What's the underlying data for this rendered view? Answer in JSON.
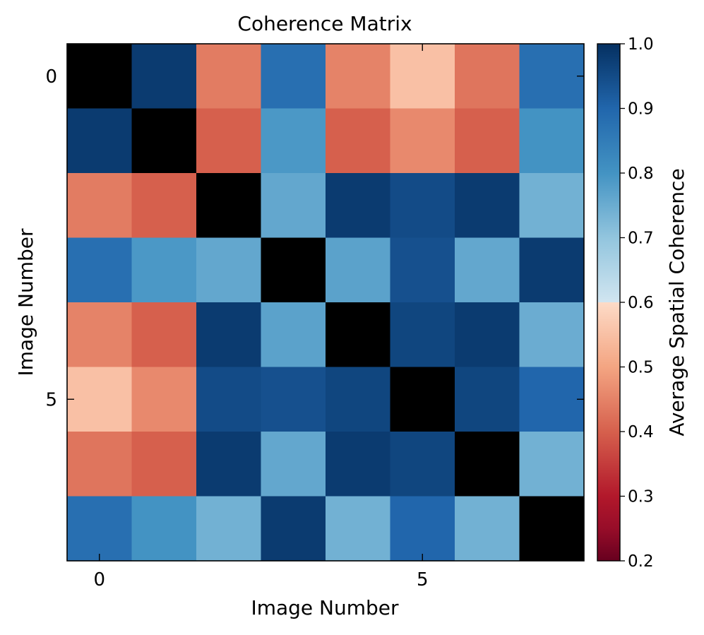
{
  "chart_data": {
    "type": "heatmap",
    "title": "Coherence Matrix",
    "xlabel": "Image Number",
    "ylabel": "Image Number",
    "x_ticks": [
      0,
      5
    ],
    "y_ticks": [
      0,
      5
    ],
    "matrix": [
      [
        1.0,
        0.98,
        0.44,
        0.88,
        0.45,
        0.55,
        0.43,
        0.88
      ],
      [
        0.98,
        1.0,
        0.4,
        0.79,
        0.4,
        0.46,
        0.4,
        0.8
      ],
      [
        0.44,
        0.4,
        1.0,
        0.76,
        0.98,
        0.95,
        0.98,
        0.74
      ],
      [
        0.88,
        0.79,
        0.76,
        1.0,
        0.77,
        0.94,
        0.76,
        0.98
      ],
      [
        0.45,
        0.4,
        0.98,
        0.77,
        1.0,
        0.96,
        0.98,
        0.75
      ],
      [
        0.55,
        0.46,
        0.95,
        0.94,
        0.96,
        1.0,
        0.96,
        0.9
      ],
      [
        0.43,
        0.4,
        0.98,
        0.76,
        0.98,
        0.96,
        1.0,
        0.74
      ],
      [
        0.88,
        0.8,
        0.74,
        0.98,
        0.74,
        0.9,
        0.74,
        1.0
      ]
    ],
    "diagonal_color": "#000000",
    "colormap": "RdBu",
    "colorbar": {
      "label": "Average Spatial Coherence",
      "range": [
        0.2,
        1.0
      ],
      "ticks": [
        "0.2",
        "0.3",
        "0.4",
        "0.5",
        "0.6",
        "0.7",
        "0.8",
        "0.9",
        "1.0"
      ],
      "placement": "right"
    },
    "grid": false
  }
}
